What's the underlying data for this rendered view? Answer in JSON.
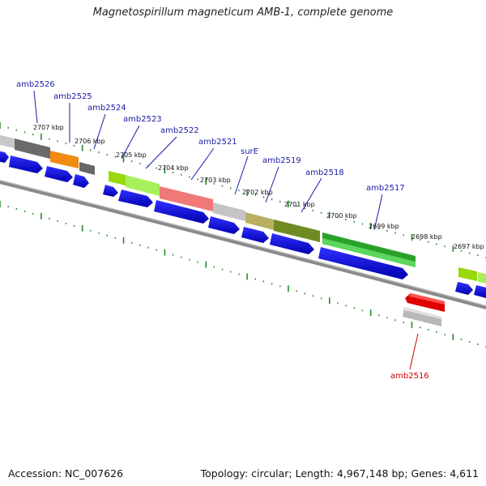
{
  "title": "Magnetospirillum magneticum AMB-1, complete genome",
  "footer": {
    "accession": "Accession: NC_007626",
    "topology": "Topology: circular; Length: 4,967,148 bp; Genes: 4,611"
  },
  "kbp_ticks": [
    "2707 kbp",
    "2706 kbp",
    "2705 kbp",
    "2704 kbp",
    "2703 kbp",
    "2702 kbp",
    "2701 kbp",
    "2700 kbp",
    "2699 kbp",
    "2698 kbp",
    "2697 kbp"
  ],
  "gene_labels": [
    {
      "text": "amb2526",
      "type": "cds"
    },
    {
      "text": "amb2525",
      "type": "cds"
    },
    {
      "text": "amb2524",
      "type": "cds"
    },
    {
      "text": "amb2523",
      "type": "cds"
    },
    {
      "text": "amb2522",
      "type": "cds"
    },
    {
      "text": "amb2521",
      "type": "cds"
    },
    {
      "text": "surE",
      "type": "cds"
    },
    {
      "text": "amb2519",
      "type": "cds"
    },
    {
      "text": "amb2518",
      "type": "cds"
    },
    {
      "text": "amb2517",
      "type": "cds"
    },
    {
      "text": "amb2516",
      "type": "rna"
    }
  ],
  "colors": {
    "backbone": "#777777",
    "tick": "#2a8a2a",
    "cds_arrow": "#1010e0",
    "label_cds": "#1a1aa6",
    "label_rna": "#cc0000"
  }
}
